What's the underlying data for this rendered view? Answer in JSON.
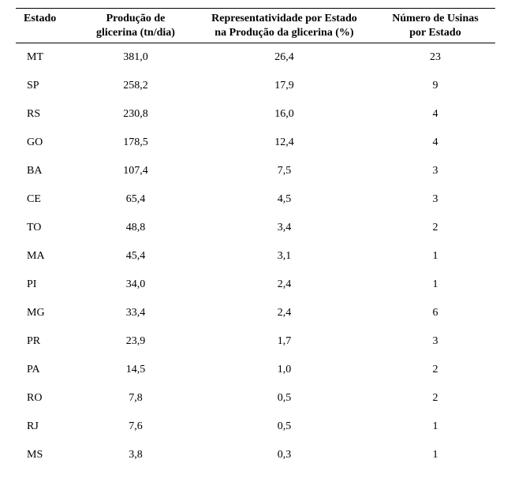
{
  "table": {
    "columns": [
      {
        "key": "estado",
        "label_line1": "Estado",
        "label_line2": ""
      },
      {
        "key": "producao",
        "label_line1": "Produção de",
        "label_line2": "glicerina (tn/dia)"
      },
      {
        "key": "representatividade",
        "label_line1": "Representatividade por Estado",
        "label_line2": "na Produção da glicerina (%)"
      },
      {
        "key": "usinas",
        "label_line1": "Número de Usinas",
        "label_line2": "por Estado"
      }
    ],
    "rows": [
      {
        "estado": "MT",
        "producao": "381,0",
        "representatividade": "26,4",
        "usinas": "23"
      },
      {
        "estado": "SP",
        "producao": "258,2",
        "representatividade": "17,9",
        "usinas": "9"
      },
      {
        "estado": "RS",
        "producao": "230,8",
        "representatividade": "16,0",
        "usinas": "4"
      },
      {
        "estado": "GO",
        "producao": "178,5",
        "representatividade": "12,4",
        "usinas": "4"
      },
      {
        "estado": "BA",
        "producao": "107,4",
        "representatividade": "7,5",
        "usinas": "3"
      },
      {
        "estado": "CE",
        "producao": "65,4",
        "representatividade": "4,5",
        "usinas": "3"
      },
      {
        "estado": "TO",
        "producao": "48,8",
        "representatividade": "3,4",
        "usinas": "2"
      },
      {
        "estado": "MA",
        "producao": "45,4",
        "representatividade": "3,1",
        "usinas": "1"
      },
      {
        "estado": "PI",
        "producao": "34,0",
        "representatividade": "2,4",
        "usinas": "1"
      },
      {
        "estado": "MG",
        "producao": "33,4",
        "representatividade": "2,4",
        "usinas": "6"
      },
      {
        "estado": "PR",
        "producao": "23,9",
        "representatividade": "1,7",
        "usinas": "3"
      },
      {
        "estado": "PA",
        "producao": "14,5",
        "representatividade": "1,0",
        "usinas": "2"
      },
      {
        "estado": "RO",
        "producao": "7,8",
        "representatividade": "0,5",
        "usinas": "2"
      },
      {
        "estado": "RJ",
        "producao": "7,6",
        "representatividade": "0,5",
        "usinas": "1"
      },
      {
        "estado": "MS",
        "producao": "3,8",
        "representatividade": "0,3",
        "usinas": "1"
      }
    ]
  },
  "style": {
    "font_family": "Times New Roman",
    "header_fontsize_pt": 11,
    "body_fontsize_pt": 11,
    "border_color": "#000000",
    "background_color": "#ffffff",
    "text_color": "#000000"
  }
}
